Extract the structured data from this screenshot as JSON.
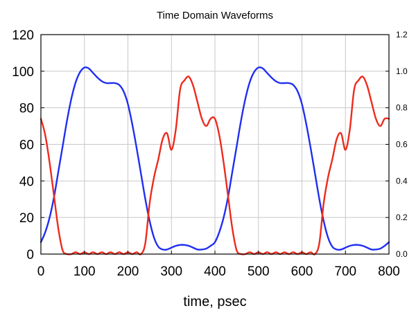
{
  "chart_data": {
    "type": "line",
    "title": "Time Domain Waveforms",
    "xlabel": "time, psec",
    "ylabel": "",
    "y2label": "",
    "xlim": [
      0,
      800
    ],
    "ylim": [
      0,
      120
    ],
    "y2lim": [
      0,
      1.2
    ],
    "x_ticks": [
      "0",
      "100",
      "200",
      "300",
      "400",
      "500",
      "600",
      "700",
      "800"
    ],
    "y_ticks": [
      "0",
      "20",
      "40",
      "60",
      "80",
      "100",
      "120"
    ],
    "y2_ticks": [
      "0.0",
      "0.2",
      "0.4",
      "0.6",
      "0.8",
      "1.0",
      "1.2"
    ],
    "grid": true,
    "colors": {
      "series_left": "#1f2ef2",
      "series_right": "#ee2a1c",
      "grid": "#c8c8c8"
    },
    "series": [
      {
        "axis": "left",
        "color": "#1f2ef2",
        "x": [
          0,
          10,
          20,
          30,
          40,
          50,
          60,
          70,
          80,
          90,
          100,
          110,
          120,
          130,
          140,
          150,
          160,
          170,
          180,
          190,
          200,
          210,
          220,
          230,
          240,
          250,
          260,
          270,
          280,
          290,
          300,
          310,
          320,
          330,
          340,
          350,
          360,
          370,
          380,
          390,
          400,
          410,
          420,
          430,
          440,
          450,
          460,
          470,
          480,
          490,
          500,
          510,
          520,
          530,
          540,
          550,
          560,
          570,
          580,
          590,
          600,
          610,
          620,
          630,
          640,
          650,
          660,
          670,
          680,
          690,
          700,
          710,
          720,
          730,
          740,
          750,
          760,
          770,
          780,
          790,
          800
        ],
        "values": [
          6.5,
          12,
          20,
          31,
          45,
          59,
          73,
          85,
          94,
          99.5,
          102,
          101.5,
          99,
          96.5,
          94.5,
          93.5,
          93.5,
          93.5,
          92.5,
          89,
          82,
          71,
          58,
          44,
          30,
          18,
          9,
          4,
          2.5,
          2.5,
          3.5,
          4.5,
          5,
          5,
          4.5,
          3.5,
          2.5,
          2.5,
          3,
          4.5,
          6.5,
          12,
          20,
          31,
          45,
          59,
          73,
          85,
          94,
          99.5,
          102,
          101.5,
          99,
          96.5,
          94.5,
          93.5,
          93.5,
          93.5,
          92.5,
          89,
          82,
          71,
          58,
          44,
          30,
          18,
          9,
          4,
          2.5,
          2.5,
          3.5,
          4.5,
          5,
          5,
          4.5,
          3.5,
          2.5,
          2.5,
          3,
          4.5,
          6.5
        ]
      },
      {
        "axis": "right",
        "color": "#ee2a1c",
        "x": [
          0,
          10,
          20,
          30,
          40,
          50,
          60,
          70,
          80,
          90,
          100,
          110,
          120,
          130,
          140,
          150,
          160,
          170,
          180,
          190,
          200,
          210,
          220,
          230,
          240,
          250,
          260,
          270,
          280,
          290,
          300,
          310,
          320,
          330,
          340,
          350,
          360,
          370,
          380,
          390,
          400,
          410,
          420,
          430,
          440,
          450,
          460,
          470,
          480,
          490,
          500,
          510,
          520,
          530,
          540,
          550,
          560,
          570,
          580,
          590,
          600,
          610,
          620,
          630,
          640,
          650,
          660,
          670,
          680,
          690,
          700,
          710,
          720,
          730,
          740,
          750,
          760,
          770,
          780,
          790,
          800
        ],
        "values": [
          0.74,
          0.65,
          0.5,
          0.32,
          0.14,
          0.02,
          0.0,
          0.0,
          0.01,
          0.0,
          0.01,
          0.0,
          0.01,
          0.0,
          0.01,
          0.0,
          0.01,
          0.0,
          0.01,
          0.0,
          0.01,
          0.0,
          0.01,
          0.0,
          0.06,
          0.28,
          0.42,
          0.52,
          0.63,
          0.66,
          0.57,
          0.68,
          0.9,
          0.95,
          0.97,
          0.92,
          0.83,
          0.74,
          0.7,
          0.74,
          0.74,
          0.65,
          0.5,
          0.32,
          0.14,
          0.02,
          0.0,
          0.0,
          0.01,
          0.0,
          0.01,
          0.0,
          0.01,
          0.0,
          0.01,
          0.0,
          0.01,
          0.0,
          0.01,
          0.0,
          0.01,
          0.0,
          0.01,
          0.0,
          0.06,
          0.28,
          0.42,
          0.52,
          0.63,
          0.66,
          0.57,
          0.68,
          0.9,
          0.95,
          0.97,
          0.92,
          0.83,
          0.74,
          0.7,
          0.74,
          0.74
        ]
      }
    ]
  }
}
